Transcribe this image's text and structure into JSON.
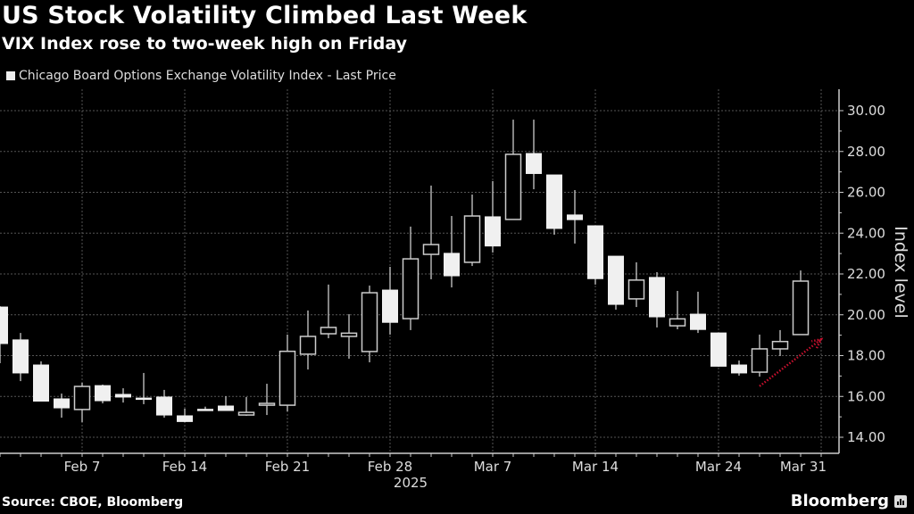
{
  "header": {
    "title": "US Stock Volatility Climbed Last Week",
    "subtitle": "VIX Index rose to two-week high on Friday"
  },
  "footer": {
    "source": "Source: CBOE, Bloomberg",
    "brand": "Bloomberg"
  },
  "colors": {
    "background": "#000000",
    "candle": "#f0f0f0",
    "hollow_outline": "#cccccc",
    "grid": "#555555",
    "arrow": "#c8102e"
  },
  "chart_data": {
    "type": "candlestick",
    "title": "US Stock Volatility Climbed Last Week",
    "subtitle": "VIX Index rose to two-week high on Friday",
    "legend": [
      "Chicago Board Options Exchange Volatility Index - Last Price"
    ],
    "legend_placement": "top-left",
    "ylabel": "Index level",
    "xlabel": "2025",
    "ylim": [
      14,
      30
    ],
    "y_axis_side": "right",
    "yticks": [
      "14.00",
      "16.00",
      "18.00",
      "20.00",
      "22.00",
      "24.00",
      "26.00",
      "28.00",
      "30.00"
    ],
    "xtick_labels": [
      {
        "date": "2025-02-07",
        "label": "Feb 7"
      },
      {
        "date": "2025-02-14",
        "label": "Feb 14"
      },
      {
        "date": "2025-02-21",
        "label": "Feb 21"
      },
      {
        "date": "2025-02-28",
        "label": "Feb 28"
      },
      {
        "date": "2025-03-07",
        "label": "Mar 7"
      },
      {
        "date": "2025-03-14",
        "label": "Mar 14"
      },
      {
        "date": "2025-03-24",
        "label": "Mar 24"
      },
      {
        "date": "2025-03-31",
        "label": "Mar 31"
      }
    ],
    "grid": true,
    "up_style": "hollow",
    "down_style": "filled",
    "candles": [
      {
        "date": "2025-02-03",
        "open": 20.38,
        "high": 20.42,
        "low": 17.63,
        "close": 18.59
      },
      {
        "date": "2025-02-04",
        "open": 18.77,
        "high": 19.11,
        "low": 16.75,
        "close": 17.15
      },
      {
        "date": "2025-02-05",
        "open": 17.54,
        "high": 17.72,
        "low": 15.75,
        "close": 15.77
      },
      {
        "date": "2025-02-06",
        "open": 15.88,
        "high": 16.14,
        "low": 14.96,
        "close": 15.44
      },
      {
        "date": "2025-02-07",
        "open": 15.36,
        "high": 16.67,
        "low": 14.74,
        "close": 16.49
      },
      {
        "date": "2025-02-10",
        "open": 16.53,
        "high": 16.58,
        "low": 15.66,
        "close": 15.79
      },
      {
        "date": "2025-02-11",
        "open": 16.1,
        "high": 16.4,
        "low": 15.7,
        "close": 15.97
      },
      {
        "date": "2025-02-12",
        "open": 15.92,
        "high": 17.15,
        "low": 15.62,
        "close": 15.88
      },
      {
        "date": "2025-02-13",
        "open": 15.97,
        "high": 16.32,
        "low": 14.96,
        "close": 15.09
      },
      {
        "date": "2025-02-14",
        "open": 15.05,
        "high": 15.4,
        "low": 14.74,
        "close": 14.77
      },
      {
        "date": "2025-02-17",
        "open": 15.37,
        "high": 15.5,
        "low": 15.35,
        "close": 15.35
      },
      {
        "date": "2025-02-18",
        "open": 15.53,
        "high": 16.01,
        "low": 15.31,
        "close": 15.31
      },
      {
        "date": "2025-02-19",
        "open": 15.09,
        "high": 15.97,
        "low": 15.05,
        "close": 15.22
      },
      {
        "date": "2025-02-20",
        "open": 15.57,
        "high": 16.62,
        "low": 15.09,
        "close": 15.66
      },
      {
        "date": "2025-02-21",
        "open": 15.57,
        "high": 19.03,
        "low": 15.27,
        "close": 18.21
      },
      {
        "date": "2025-02-24",
        "open": 18.07,
        "high": 20.21,
        "low": 17.32,
        "close": 18.94
      },
      {
        "date": "2025-02-25",
        "open": 19.07,
        "high": 21.48,
        "low": 18.85,
        "close": 19.38
      },
      {
        "date": "2025-02-26",
        "open": 18.94,
        "high": 20.03,
        "low": 17.85,
        "close": 19.1
      },
      {
        "date": "2025-02-27",
        "open": 18.2,
        "high": 21.43,
        "low": 17.67,
        "close": 21.08
      },
      {
        "date": "2025-02-28",
        "open": 21.21,
        "high": 22.35,
        "low": 19.03,
        "close": 19.63
      },
      {
        "date": "2025-03-03",
        "open": 19.81,
        "high": 24.32,
        "low": 19.25,
        "close": 22.74
      },
      {
        "date": "2025-03-04",
        "open": 22.96,
        "high": 26.33,
        "low": 21.74,
        "close": 23.44
      },
      {
        "date": "2025-03-05",
        "open": 23.01,
        "high": 24.84,
        "low": 21.34,
        "close": 21.91
      },
      {
        "date": "2025-03-06",
        "open": 22.57,
        "high": 25.89,
        "low": 22.39,
        "close": 24.84
      },
      {
        "date": "2025-03-07",
        "open": 24.8,
        "high": 26.55,
        "low": 23.05,
        "close": 23.37
      },
      {
        "date": "2025-03-10",
        "open": 24.67,
        "high": 29.56,
        "low": 24.67,
        "close": 27.86
      },
      {
        "date": "2025-03-11",
        "open": 27.9,
        "high": 29.56,
        "low": 26.15,
        "close": 26.92
      },
      {
        "date": "2025-03-12",
        "open": 26.85,
        "high": 26.85,
        "low": 23.92,
        "close": 24.23
      },
      {
        "date": "2025-03-13",
        "open": 24.89,
        "high": 26.11,
        "low": 23.49,
        "close": 24.66
      },
      {
        "date": "2025-03-14",
        "open": 24.36,
        "high": 24.36,
        "low": 21.48,
        "close": 21.77
      },
      {
        "date": "2025-03-17",
        "open": 22.87,
        "high": 22.87,
        "low": 20.25,
        "close": 20.51
      },
      {
        "date": "2025-03-18",
        "open": 20.78,
        "high": 22.57,
        "low": 20.38,
        "close": 21.7
      },
      {
        "date": "2025-03-19",
        "open": 21.83,
        "high": 22.09,
        "low": 19.38,
        "close": 19.9
      },
      {
        "date": "2025-03-20",
        "open": 19.46,
        "high": 21.17,
        "low": 19.29,
        "close": 19.8
      },
      {
        "date": "2025-03-21",
        "open": 20.03,
        "high": 21.13,
        "low": 19.11,
        "close": 19.28
      },
      {
        "date": "2025-03-24",
        "open": 19.11,
        "high": 19.11,
        "low": 17.45,
        "close": 17.48
      },
      {
        "date": "2025-03-25",
        "open": 17.54,
        "high": 17.76,
        "low": 17.02,
        "close": 17.15
      },
      {
        "date": "2025-03-26",
        "open": 17.19,
        "high": 19.03,
        "low": 16.97,
        "close": 18.33
      },
      {
        "date": "2025-03-27",
        "open": 18.33,
        "high": 19.25,
        "low": 17.98,
        "close": 18.69
      },
      {
        "date": "2025-03-28",
        "open": 19.03,
        "high": 22.17,
        "low": 19.03,
        "close": 21.65
      }
    ],
    "annotations": [
      {
        "type": "arrow",
        "style": "dotted",
        "from": {
          "date": "2025-03-26",
          "value": 16.5
        },
        "to": {
          "date": "2025-03-31",
          "value": 18.8
        }
      }
    ]
  }
}
